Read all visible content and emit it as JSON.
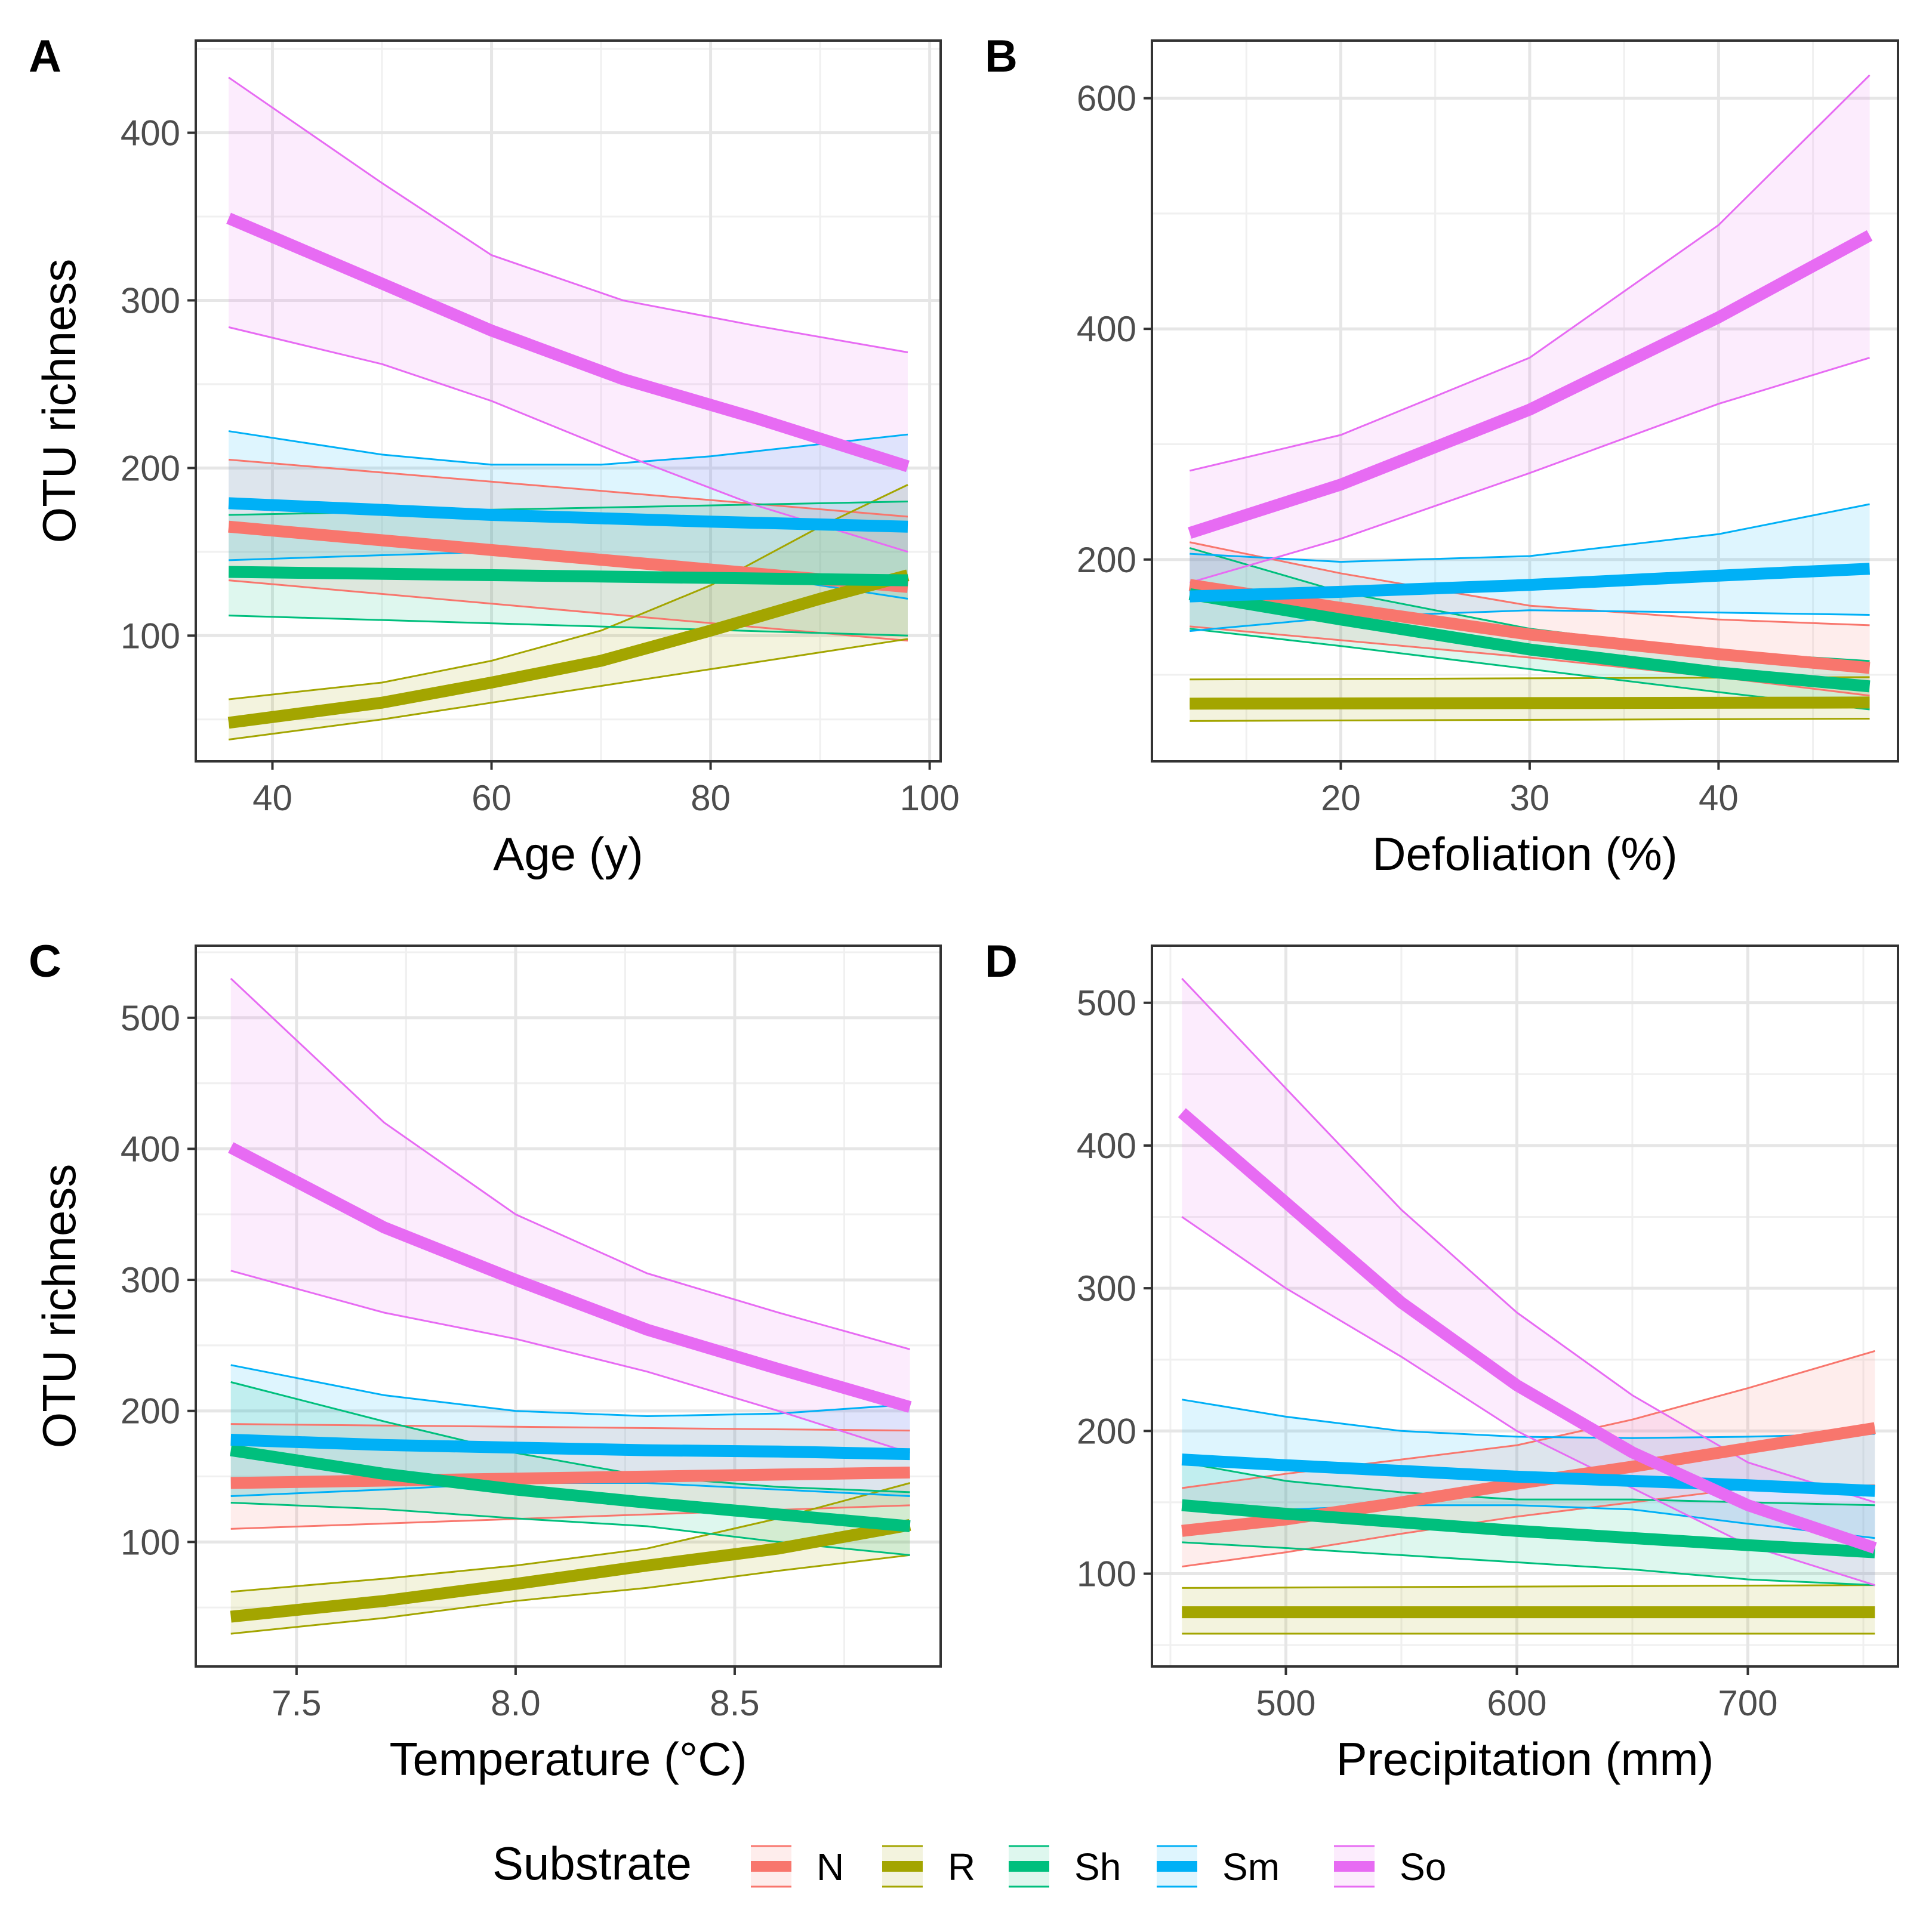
{
  "figure": {
    "y_axis_title": "OTU richness",
    "legend": {
      "title": "Substrate",
      "items": [
        {
          "key": "N",
          "label": "N",
          "color": "#F8766D"
        },
        {
          "key": "R",
          "label": "R",
          "color": "#A3A500"
        },
        {
          "key": "Sh",
          "label": "Sh",
          "color": "#00BF7D"
        },
        {
          "key": "Sm",
          "label": "Sm",
          "color": "#00B0F6"
        },
        {
          "key": "So",
          "label": "So",
          "color": "#E76BF3"
        }
      ]
    }
  },
  "chart_data": [
    {
      "panel": "A",
      "type": "line",
      "xlabel": "Age (y)",
      "ylabel": "OTU richness",
      "xlim": [
        33,
        101
      ],
      "ylim": [
        25,
        455
      ],
      "xticks": [
        40,
        60,
        80,
        100
      ],
      "xtick_labels": [
        "40",
        "60",
        "80",
        "100"
      ],
      "yticks": [
        100,
        200,
        300,
        400
      ],
      "ytick_labels": [
        "100",
        "200",
        "300",
        "400"
      ],
      "series": [
        {
          "name": "N",
          "x": [
            36,
            98
          ],
          "fit": [
            165,
            129
          ],
          "lower": [
            133,
            97
          ],
          "upper": [
            205,
            171
          ]
        },
        {
          "name": "R",
          "x": [
            36,
            50,
            60,
            70,
            80,
            90,
            98
          ],
          "fit": [
            48,
            60,
            72,
            85,
            103,
            122,
            136
          ],
          "lower": [
            38,
            50,
            60,
            70,
            80,
            90,
            98
          ],
          "upper": [
            62,
            72,
            85,
            103,
            130,
            165,
            190
          ]
        },
        {
          "name": "Sh",
          "x": [
            36,
            98
          ],
          "fit": [
            138,
            133
          ],
          "lower": [
            112,
            100
          ],
          "upper": [
            172,
            180
          ]
        },
        {
          "name": "Sm",
          "x": [
            36,
            50,
            60,
            70,
            80,
            98
          ],
          "fit": [
            179,
            175,
            172,
            170,
            168,
            165
          ],
          "lower": [
            145,
            148,
            150,
            148,
            140,
            122
          ],
          "upper": [
            222,
            208,
            202,
            202,
            207,
            220
          ]
        },
        {
          "name": "So",
          "x": [
            36,
            50,
            60,
            72,
            84,
            98
          ],
          "fit": [
            349,
            310,
            282,
            253,
            230,
            201
          ],
          "lower": [
            284,
            262,
            240,
            208,
            178,
            150
          ],
          "upper": [
            433,
            370,
            327,
            300,
            285,
            269
          ]
        }
      ]
    },
    {
      "panel": "B",
      "type": "line",
      "xlabel": "Defoliation (%)",
      "ylabel": "",
      "xlim": [
        10,
        49.5
      ],
      "ylim": [
        25,
        650
      ],
      "xticks": [
        20,
        30,
        40
      ],
      "xtick_labels": [
        "20",
        "30",
        "40"
      ],
      "yticks": [
        200,
        400,
        600
      ],
      "ytick_labels": [
        "200",
        "400",
        "600"
      ],
      "series": [
        {
          "name": "N",
          "x": [
            12,
            20,
            30,
            40,
            48
          ],
          "fit": [
            178,
            158,
            135,
            118,
            106
          ],
          "lower": [
            142,
            130,
            115,
            98,
            82
          ],
          "upper": [
            215,
            188,
            160,
            148,
            143
          ]
        },
        {
          "name": "R",
          "x": [
            12,
            48
          ],
          "fit": [
            75,
            76
          ],
          "lower": [
            60,
            62
          ],
          "upper": [
            96,
            98
          ]
        },
        {
          "name": "Sh",
          "x": [
            12,
            20,
            30,
            40,
            48
          ],
          "fit": [
            170,
            148,
            122,
            102,
            90
          ],
          "lower": [
            140,
            125,
            105,
            85,
            70
          ],
          "upper": [
            210,
            172,
            140,
            120,
            112
          ]
        },
        {
          "name": "Sm",
          "x": [
            12,
            20,
            30,
            40,
            48
          ],
          "fit": [
            168,
            172,
            178,
            186,
            192
          ],
          "lower": [
            138,
            150,
            156,
            154,
            152
          ],
          "upper": [
            205,
            198,
            203,
            222,
            248
          ]
        },
        {
          "name": "So",
          "x": [
            12,
            20,
            30,
            40,
            48
          ],
          "fit": [
            223,
            265,
            330,
            410,
            481
          ],
          "lower": [
            180,
            218,
            275,
            335,
            375
          ],
          "upper": [
            277,
            308,
            375,
            490,
            620
          ]
        }
      ]
    },
    {
      "panel": "C",
      "type": "line",
      "xlabel": "Temperature (°C)",
      "ylabel": "OTU richness",
      "xlim": [
        7.27,
        8.97
      ],
      "ylim": [
        5,
        555
      ],
      "xticks": [
        7.5,
        8.0,
        8.5
      ],
      "xtick_labels": [
        "7.5",
        "8.0",
        "8.5"
      ],
      "yticks": [
        100,
        200,
        300,
        400,
        500
      ],
      "ytick_labels": [
        "100",
        "200",
        "300",
        "400",
        "500"
      ],
      "series": [
        {
          "name": "N",
          "x": [
            7.35,
            8.9
          ],
          "fit": [
            145,
            153
          ],
          "lower": [
            110,
            128
          ],
          "upper": [
            190,
            185
          ]
        },
        {
          "name": "R",
          "x": [
            7.35,
            7.7,
            8.0,
            8.3,
            8.6,
            8.9
          ],
          "fit": [
            43,
            55,
            68,
            82,
            95,
            113
          ],
          "lower": [
            30,
            42,
            55,
            65,
            78,
            90
          ],
          "upper": [
            62,
            72,
            82,
            95,
            118,
            145
          ]
        },
        {
          "name": "Sh",
          "x": [
            7.35,
            7.7,
            8.0,
            8.3,
            8.6,
            8.9
          ],
          "fit": [
            170,
            152,
            140,
            130,
            121,
            112
          ],
          "lower": [
            130,
            125,
            118,
            112,
            100,
            90
          ],
          "upper": [
            222,
            192,
            168,
            150,
            142,
            138
          ]
        },
        {
          "name": "Sm",
          "x": [
            7.35,
            7.7,
            8.0,
            8.3,
            8.6,
            8.9
          ],
          "fit": [
            178,
            174,
            172,
            170,
            169,
            167
          ],
          "lower": [
            135,
            140,
            145,
            145,
            140,
            135
          ],
          "upper": [
            235,
            212,
            200,
            196,
            198,
            205
          ]
        },
        {
          "name": "So",
          "x": [
            7.35,
            7.7,
            8.0,
            8.3,
            8.6,
            8.9
          ],
          "fit": [
            401,
            340,
            300,
            262,
            232,
            203
          ],
          "lower": [
            307,
            275,
            255,
            230,
            200,
            168
          ],
          "upper": [
            530,
            420,
            350,
            305,
            275,
            247
          ]
        }
      ]
    },
    {
      "panel": "D",
      "type": "line",
      "xlabel": "Precipitation (mm)",
      "ylabel": "",
      "xlim": [
        442,
        765
      ],
      "ylim": [
        35,
        540
      ],
      "xticks": [
        500,
        600,
        700
      ],
      "xtick_labels": [
        "500",
        "600",
        "700"
      ],
      "yticks": [
        100,
        200,
        300,
        400,
        500
      ],
      "ytick_labels": [
        "100",
        "200",
        "300",
        "400",
        "500"
      ],
      "series": [
        {
          "name": "N",
          "x": [
            455,
            500,
            550,
            600,
            650,
            700,
            755
          ],
          "fit": [
            130,
            138,
            150,
            163,
            175,
            188,
            202
          ],
          "lower": [
            105,
            115,
            128,
            140,
            150,
            160,
            162
          ],
          "upper": [
            160,
            170,
            180,
            190,
            208,
            230,
            256
          ]
        },
        {
          "name": "R",
          "x": [
            455,
            755
          ],
          "fit": [
            73,
            73
          ],
          "lower": [
            58,
            58
          ],
          "upper": [
            90,
            92
          ]
        },
        {
          "name": "Sh",
          "x": [
            455,
            500,
            550,
            600,
            650,
            700,
            755
          ],
          "fit": [
            148,
            142,
            136,
            130,
            125,
            120,
            115
          ],
          "lower": [
            122,
            118,
            113,
            108,
            103,
            96,
            92
          ],
          "upper": [
            178,
            165,
            157,
            152,
            152,
            150,
            148
          ]
        },
        {
          "name": "Sm",
          "x": [
            455,
            500,
            550,
            600,
            650,
            700,
            755
          ],
          "fit": [
            180,
            176,
            172,
            168,
            165,
            162,
            158
          ],
          "lower": [
            145,
            145,
            148,
            148,
            145,
            135,
            125
          ],
          "upper": [
            222,
            210,
            200,
            196,
            195,
            196,
            198
          ]
        },
        {
          "name": "So",
          "x": [
            455,
            500,
            550,
            600,
            650,
            700,
            755
          ],
          "fit": [
            423,
            360,
            290,
            232,
            185,
            148,
            118
          ],
          "lower": [
            350,
            300,
            252,
            200,
            160,
            120,
            92
          ],
          "upper": [
            517,
            440,
            355,
            283,
            225,
            178,
            150
          ]
        }
      ]
    }
  ]
}
